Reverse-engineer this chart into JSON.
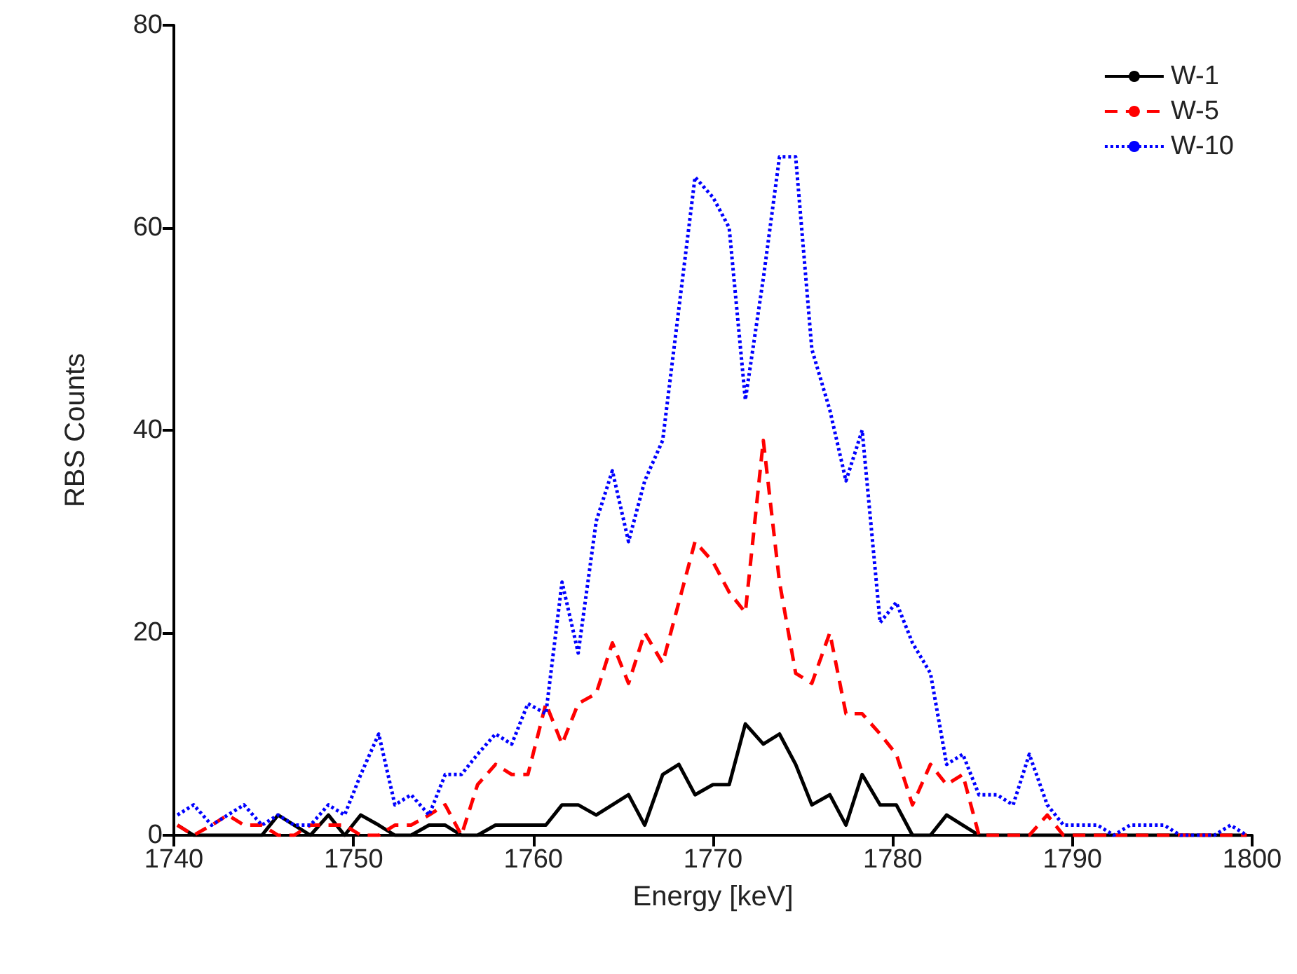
{
  "chart_data": {
    "type": "line",
    "xlabel": "Energy [keV]",
    "ylabel": "RBS Counts",
    "x": [
      1740.2,
      1741.1,
      1742.1,
      1743.0,
      1743.9,
      1744.9,
      1745.8,
      1746.7,
      1747.6,
      1748.6,
      1749.5,
      1750.4,
      1751.4,
      1752.3,
      1753.2,
      1754.2,
      1755.1,
      1756.0,
      1756.9,
      1757.9,
      1758.8,
      1759.7,
      1760.7,
      1761.6,
      1762.5,
      1763.5,
      1764.4,
      1765.3,
      1766.2,
      1767.2,
      1768.1,
      1769.0,
      1770.0,
      1770.9,
      1771.8,
      1772.8,
      1773.7,
      1774.6,
      1775.5,
      1776.5,
      1777.4,
      1778.3,
      1779.3,
      1780.2,
      1781.1,
      1782.1,
      1783.0,
      1783.9,
      1784.8,
      1785.8,
      1786.7,
      1787.6,
      1788.6,
      1789.5,
      1790.4,
      1791.4,
      1792.3,
      1793.2,
      1794.1,
      1795.1,
      1796.0,
      1796.9,
      1797.9,
      1798.8,
      1799.7
    ],
    "series": [
      {
        "name": "W-1",
        "color": "#000000",
        "line_style": "solid",
        "values": [
          1,
          0,
          0,
          0,
          0,
          0,
          2,
          1,
          0,
          2,
          0,
          2,
          1,
          0,
          0,
          1,
          1,
          0,
          0,
          1,
          1,
          1,
          1,
          3,
          3,
          2,
          3,
          4,
          1,
          6,
          7,
          4,
          5,
          5,
          11,
          9,
          10,
          7,
          3,
          4,
          1,
          6,
          3,
          3,
          0,
          0,
          2,
          1,
          0,
          0,
          0,
          0,
          0,
          0,
          0,
          0,
          0,
          0,
          0,
          0,
          0,
          0,
          0,
          0,
          0
        ]
      },
      {
        "name": "W-5",
        "color": "#ff0000",
        "line_style": "dashed",
        "values": [
          1,
          0,
          1,
          2,
          1,
          1,
          0,
          0,
          1,
          1,
          1,
          0,
          0,
          1,
          1,
          2,
          3,
          0,
          5,
          7,
          6,
          6,
          13,
          9,
          13,
          14,
          19,
          15,
          20,
          17,
          23,
          29,
          27,
          24,
          22,
          39,
          25,
          16,
          15,
          20,
          12,
          12,
          10,
          8,
          3,
          7,
          5,
          6,
          0,
          0,
          0,
          0,
          2,
          0,
          0,
          0,
          0,
          0,
          0,
          0,
          0,
          0,
          0,
          0,
          0
        ]
      },
      {
        "name": "W-10",
        "color": "#0000ff",
        "line_style": "dotted",
        "values": [
          2,
          3,
          1,
          2,
          3,
          1,
          2,
          1,
          1,
          3,
          2,
          6,
          10,
          3,
          4,
          2,
          6,
          6,
          8,
          10,
          9,
          13,
          12,
          25,
          18,
          31,
          36,
          29,
          35,
          39,
          52,
          65,
          63,
          60,
          43,
          55,
          67,
          67,
          48,
          42,
          35,
          40,
          21,
          23,
          19,
          16,
          7,
          8,
          4,
          4,
          3,
          8,
          3,
          1,
          1,
          1,
          0,
          1,
          1,
          1,
          0,
          0,
          0,
          1,
          0
        ]
      }
    ],
    "xlim": [
      1740,
      1800
    ],
    "xticks": [
      1740,
      1750,
      1760,
      1770,
      1780,
      1790,
      1800
    ],
    "ylim": [
      0,
      80
    ],
    "yticks": [
      0,
      20,
      40,
      60,
      80
    ],
    "grid": false,
    "legend": "top right",
    "marker": "none"
  }
}
